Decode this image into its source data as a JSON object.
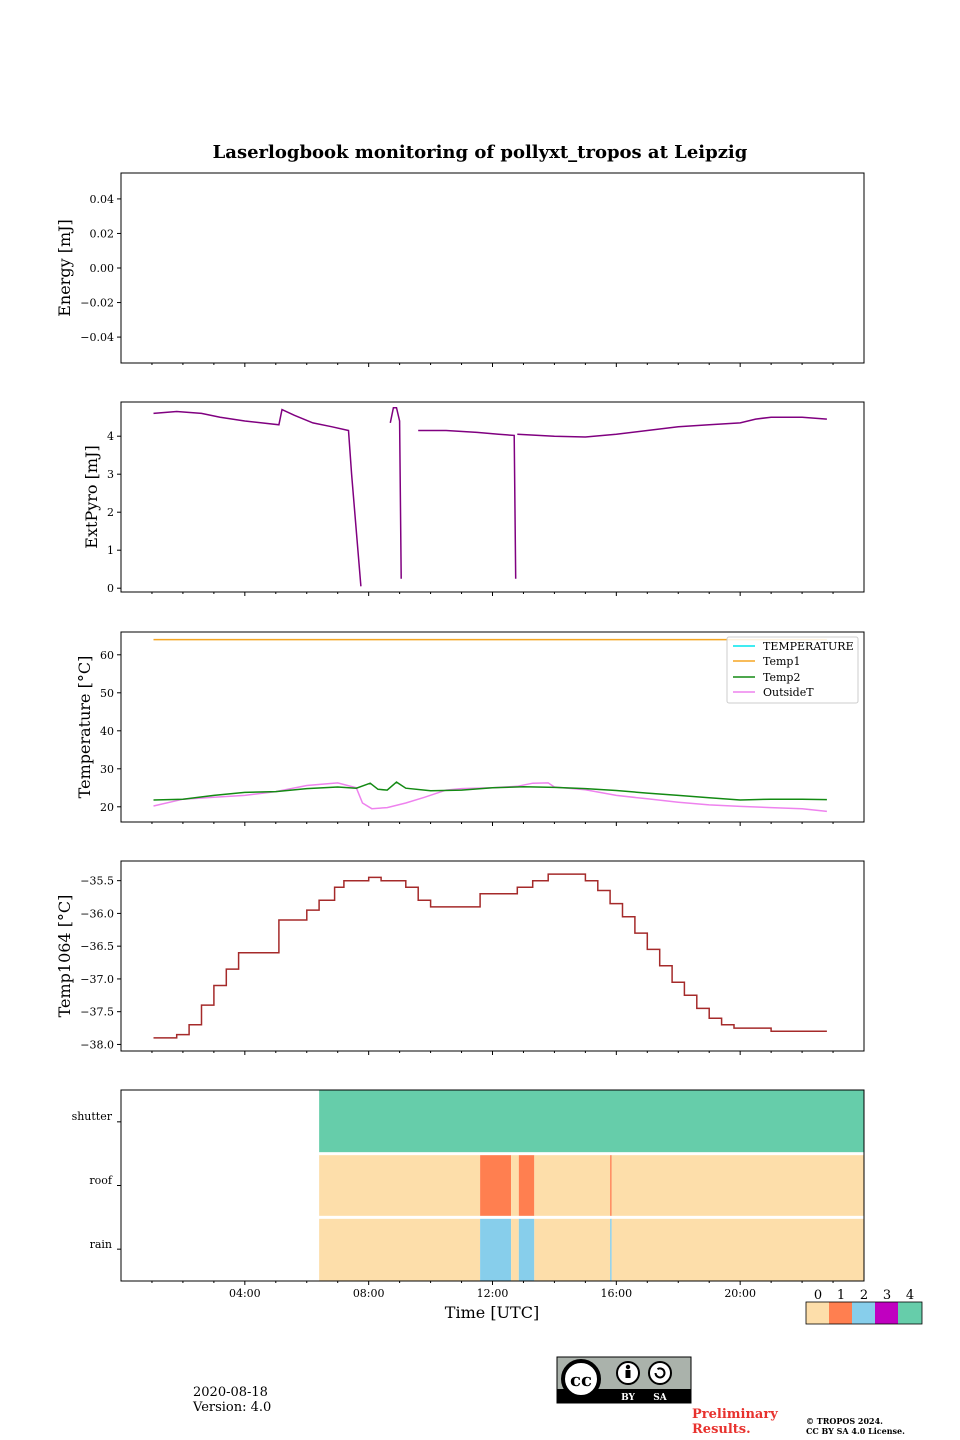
{
  "title": "Laserlogbook monitoring of pollyxt_tropos at Leipzig",
  "date_label": "2020-08-18",
  "version_label": "Version: 4.0",
  "preliminary_line1": "Preliminary",
  "preliminary_line2": "Results.",
  "copyright_line1": "© TROPOS 2024.",
  "copyright_line2": "CC BY SA 4.0 License.",
  "license_badge": {
    "by": "BY",
    "sa": "SA",
    "cc": "cc"
  },
  "colors": {
    "extpyro": "#800080",
    "temperature": "#00e5ee",
    "temp1": "#f5a623",
    "temp2": "#138a13",
    "outside": "#ee82ee",
    "temp1064": "#a52a2a",
    "status0": "#fddeaa",
    "status1": "#ff7f50",
    "status2": "#87ceeb",
    "status3": "#c000c0",
    "status4": "#66cdaa"
  },
  "chart_data": [
    {
      "type": "line",
      "name": "energy",
      "ylabel": "Energy [mJ]",
      "ylim": [
        -0.055,
        0.055
      ],
      "yticks": [
        0.04,
        0.02,
        0.0,
        -0.02,
        -0.04
      ],
      "ytick_labels": [
        "0.04",
        "0.02",
        "0.00",
        "−0.02",
        "−0.04"
      ],
      "series": []
    },
    {
      "type": "line",
      "name": "extpyro",
      "ylabel": "ExtPyro [mJ]",
      "ylim": [
        -0.1,
        4.9
      ],
      "yticks": [
        0,
        1,
        2,
        3,
        4
      ],
      "ytick_labels": [
        "0",
        "1",
        "2",
        "3",
        "4"
      ],
      "series": [
        {
          "name": "ExtPyro",
          "segments": [
            [
              [
                1.05,
                4.6
              ],
              [
                1.8,
                4.65
              ],
              [
                2.6,
                4.6
              ],
              [
                3.2,
                4.5
              ],
              [
                4.0,
                4.4
              ],
              [
                5.1,
                4.3
              ],
              [
                5.2,
                4.7
              ],
              [
                5.6,
                4.55
              ],
              [
                6.2,
                4.35
              ],
              [
                6.8,
                4.25
              ],
              [
                7.35,
                4.15
              ],
              [
                7.45,
                3.0
              ],
              [
                7.75,
                0.05
              ]
            ],
            [
              [
                8.7,
                4.35
              ],
              [
                8.8,
                4.75
              ],
              [
                8.9,
                4.75
              ],
              [
                9.0,
                4.4
              ],
              [
                9.05,
                0.25
              ]
            ],
            [
              [
                9.6,
                4.15
              ],
              [
                10.5,
                4.15
              ],
              [
                11.5,
                4.1
              ],
              [
                12.2,
                4.05
              ],
              [
                12.7,
                4.02
              ],
              [
                12.75,
                0.25
              ]
            ],
            [
              [
                12.8,
                4.05
              ],
              [
                14.0,
                4.0
              ],
              [
                15.0,
                3.98
              ],
              [
                16.0,
                4.05
              ],
              [
                17.0,
                4.15
              ],
              [
                18.0,
                4.25
              ],
              [
                19.0,
                4.3
              ],
              [
                20.0,
                4.35
              ],
              [
                20.5,
                4.45
              ],
              [
                21.0,
                4.5
              ],
              [
                22.0,
                4.5
              ],
              [
                22.8,
                4.45
              ]
            ]
          ]
        }
      ]
    },
    {
      "type": "line",
      "name": "temperature",
      "ylabel": "Temperature [°C]",
      "ylim": [
        16,
        66
      ],
      "yticks": [
        20,
        30,
        40,
        50,
        60
      ],
      "ytick_labels": [
        "20",
        "30",
        "40",
        "50",
        "60"
      ],
      "legend_position": "upper-right",
      "legend": [
        "TEMPERATURE",
        "Temp1",
        "Temp2",
        "OutsideT"
      ],
      "series": [
        {
          "name": "TEMPERATURE",
          "points": []
        },
        {
          "name": "Temp1",
          "points": [
            [
              1.05,
              64
            ],
            [
              22.8,
              64
            ]
          ]
        },
        {
          "name": "Temp2",
          "points": [
            [
              1.05,
              21.8
            ],
            [
              2.0,
              22.0
            ],
            [
              3.0,
              23.0
            ],
            [
              4.0,
              23.8
            ],
            [
              5.0,
              24.0
            ],
            [
              6.0,
              24.8
            ],
            [
              7.0,
              25.2
            ],
            [
              7.6,
              24.9
            ],
            [
              8.05,
              26.2
            ],
            [
              8.3,
              24.6
            ],
            [
              8.6,
              24.4
            ],
            [
              8.9,
              26.5
            ],
            [
              9.2,
              24.9
            ],
            [
              10.0,
              24.2
            ],
            [
              11.0,
              24.4
            ],
            [
              12.0,
              25.0
            ],
            [
              13.0,
              25.3
            ],
            [
              14.0,
              25.1
            ],
            [
              15.0,
              24.8
            ],
            [
              16.0,
              24.3
            ],
            [
              17.0,
              23.6
            ],
            [
              18.0,
              23.0
            ],
            [
              19.0,
              22.4
            ],
            [
              20.0,
              21.8
            ],
            [
              21.0,
              22.0
            ],
            [
              22.0,
              22.0
            ],
            [
              22.8,
              21.9
            ]
          ]
        },
        {
          "name": "OutsideT",
          "points": [
            [
              1.05,
              20.2
            ],
            [
              2.0,
              22.0
            ],
            [
              3.0,
              22.5
            ],
            [
              4.0,
              23.0
            ],
            [
              5.0,
              24.0
            ],
            [
              6.0,
              25.6
            ],
            [
              7.0,
              26.3
            ],
            [
              7.6,
              25.0
            ],
            [
              7.8,
              21.0
            ],
            [
              8.1,
              19.5
            ],
            [
              8.6,
              19.8
            ],
            [
              9.2,
              21.0
            ],
            [
              9.8,
              22.5
            ],
            [
              10.5,
              24.4
            ],
            [
              11.0,
              24.8
            ],
            [
              12.0,
              25.0
            ],
            [
              12.8,
              25.4
            ],
            [
              13.3,
              26.2
            ],
            [
              13.8,
              26.3
            ],
            [
              14.0,
              25.2
            ],
            [
              15.0,
              24.5
            ],
            [
              16.0,
              23.0
            ],
            [
              17.0,
              22.1
            ],
            [
              18.0,
              21.2
            ],
            [
              19.0,
              20.5
            ],
            [
              20.0,
              20.1
            ],
            [
              21.0,
              19.8
            ],
            [
              22.0,
              19.5
            ],
            [
              22.8,
              18.8
            ]
          ]
        }
      ]
    },
    {
      "type": "line",
      "name": "temp1064",
      "ylabel": "Temp1064 [°C]",
      "ylim": [
        -38.1,
        -35.2
      ],
      "yticks": [
        -35.5,
        -36.0,
        -36.5,
        -37.0,
        -37.5,
        -38.0
      ],
      "ytick_labels": [
        "−35.5",
        "−36.0",
        "−36.5",
        "−37.0",
        "−37.5",
        "−38.0"
      ],
      "series": [
        {
          "name": "Temp1064",
          "points": [
            [
              1.05,
              -37.9
            ],
            [
              1.5,
              -37.9
            ],
            [
              1.8,
              -37.85
            ],
            [
              2.2,
              -37.7
            ],
            [
              2.6,
              -37.4
            ],
            [
              3.0,
              -37.1
            ],
            [
              3.4,
              -36.85
            ],
            [
              3.8,
              -36.6
            ],
            [
              5.1,
              -36.1
            ],
            [
              5.6,
              -36.1
            ],
            [
              6.0,
              -35.95
            ],
            [
              6.4,
              -35.8
            ],
            [
              6.9,
              -35.6
            ],
            [
              7.2,
              -35.5
            ],
            [
              7.6,
              -35.5
            ],
            [
              8.0,
              -35.45
            ],
            [
              8.4,
              -35.5
            ],
            [
              8.8,
              -35.5
            ],
            [
              9.2,
              -35.6
            ],
            [
              9.6,
              -35.8
            ],
            [
              10.0,
              -35.9
            ],
            [
              10.6,
              -35.9
            ],
            [
              11.0,
              -35.9
            ],
            [
              11.6,
              -35.7
            ],
            [
              12.2,
              -35.7
            ],
            [
              12.8,
              -35.6
            ],
            [
              13.3,
              -35.5
            ],
            [
              13.8,
              -35.4
            ],
            [
              14.6,
              -35.4
            ],
            [
              15.0,
              -35.5
            ],
            [
              15.4,
              -35.65
            ],
            [
              15.8,
              -35.85
            ],
            [
              16.2,
              -36.05
            ],
            [
              16.6,
              -36.3
            ],
            [
              17.0,
              -36.55
            ],
            [
              17.4,
              -36.8
            ],
            [
              17.8,
              -37.05
            ],
            [
              18.2,
              -37.25
            ],
            [
              18.6,
              -37.45
            ],
            [
              19.0,
              -37.6
            ],
            [
              19.4,
              -37.7
            ],
            [
              19.8,
              -37.75
            ],
            [
              20.4,
              -37.75
            ],
            [
              21.0,
              -37.8
            ],
            [
              21.8,
              -37.8
            ],
            [
              22.8,
              -37.8
            ]
          ]
        }
      ]
    },
    {
      "type": "heatmap",
      "name": "status",
      "xlabel": "Time [UTC]",
      "xlim": [
        0,
        24
      ],
      "xticks": [
        4,
        8,
        12,
        16,
        20
      ],
      "xtick_labels": [
        "04:00",
        "08:00",
        "12:00",
        "16:00",
        "20:00"
      ],
      "rows": [
        "shutter",
        "roof",
        "rain"
      ],
      "row_segments": {
        "shutter": [
          {
            "start": 6.4,
            "end": 24.0,
            "value": 4
          }
        ],
        "roof": [
          {
            "start": 6.4,
            "end": 11.6,
            "value": 0
          },
          {
            "start": 11.6,
            "end": 12.6,
            "value": 1
          },
          {
            "start": 12.6,
            "end": 12.85,
            "value": 0
          },
          {
            "start": 12.85,
            "end": 13.35,
            "value": 1
          },
          {
            "start": 13.35,
            "end": 15.8,
            "value": 0
          },
          {
            "start": 15.8,
            "end": 15.85,
            "value": 1
          },
          {
            "start": 15.85,
            "end": 24.0,
            "value": 0
          }
        ],
        "rain": [
          {
            "start": 6.4,
            "end": 11.6,
            "value": 0
          },
          {
            "start": 11.6,
            "end": 12.6,
            "value": 2
          },
          {
            "start": 12.6,
            "end": 12.85,
            "value": 0
          },
          {
            "start": 12.85,
            "end": 13.35,
            "value": 2
          },
          {
            "start": 13.35,
            "end": 15.8,
            "value": 0
          },
          {
            "start": 15.8,
            "end": 15.85,
            "value": 2
          },
          {
            "start": 15.85,
            "end": 24.0,
            "value": 0
          }
        ]
      },
      "colorbar": {
        "ticks": [
          "0",
          "1",
          "2",
          "3",
          "4"
        ]
      }
    }
  ]
}
